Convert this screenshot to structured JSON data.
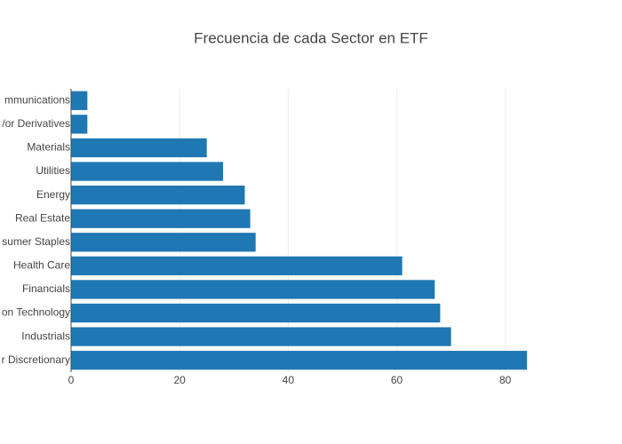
{
  "chart_data": {
    "type": "barh",
    "title": "Frecuencia de cada Sector en ETF",
    "categories": [
      "mmunications",
      "/or Derivatives",
      "Materials",
      "Utilities",
      "Energy",
      "Real Estate",
      "sumer Staples",
      "Health Care",
      "Financials",
      "on Technology",
      "Industrials",
      "r Discretionary"
    ],
    "values": [
      3,
      3,
      25,
      28,
      32,
      33,
      34,
      61,
      67,
      68,
      70,
      84
    ],
    "color": "#1f77b4",
    "xlim": [
      0,
      88.4
    ],
    "xticks": [
      0,
      20,
      40,
      60,
      80
    ],
    "grid": true
  }
}
